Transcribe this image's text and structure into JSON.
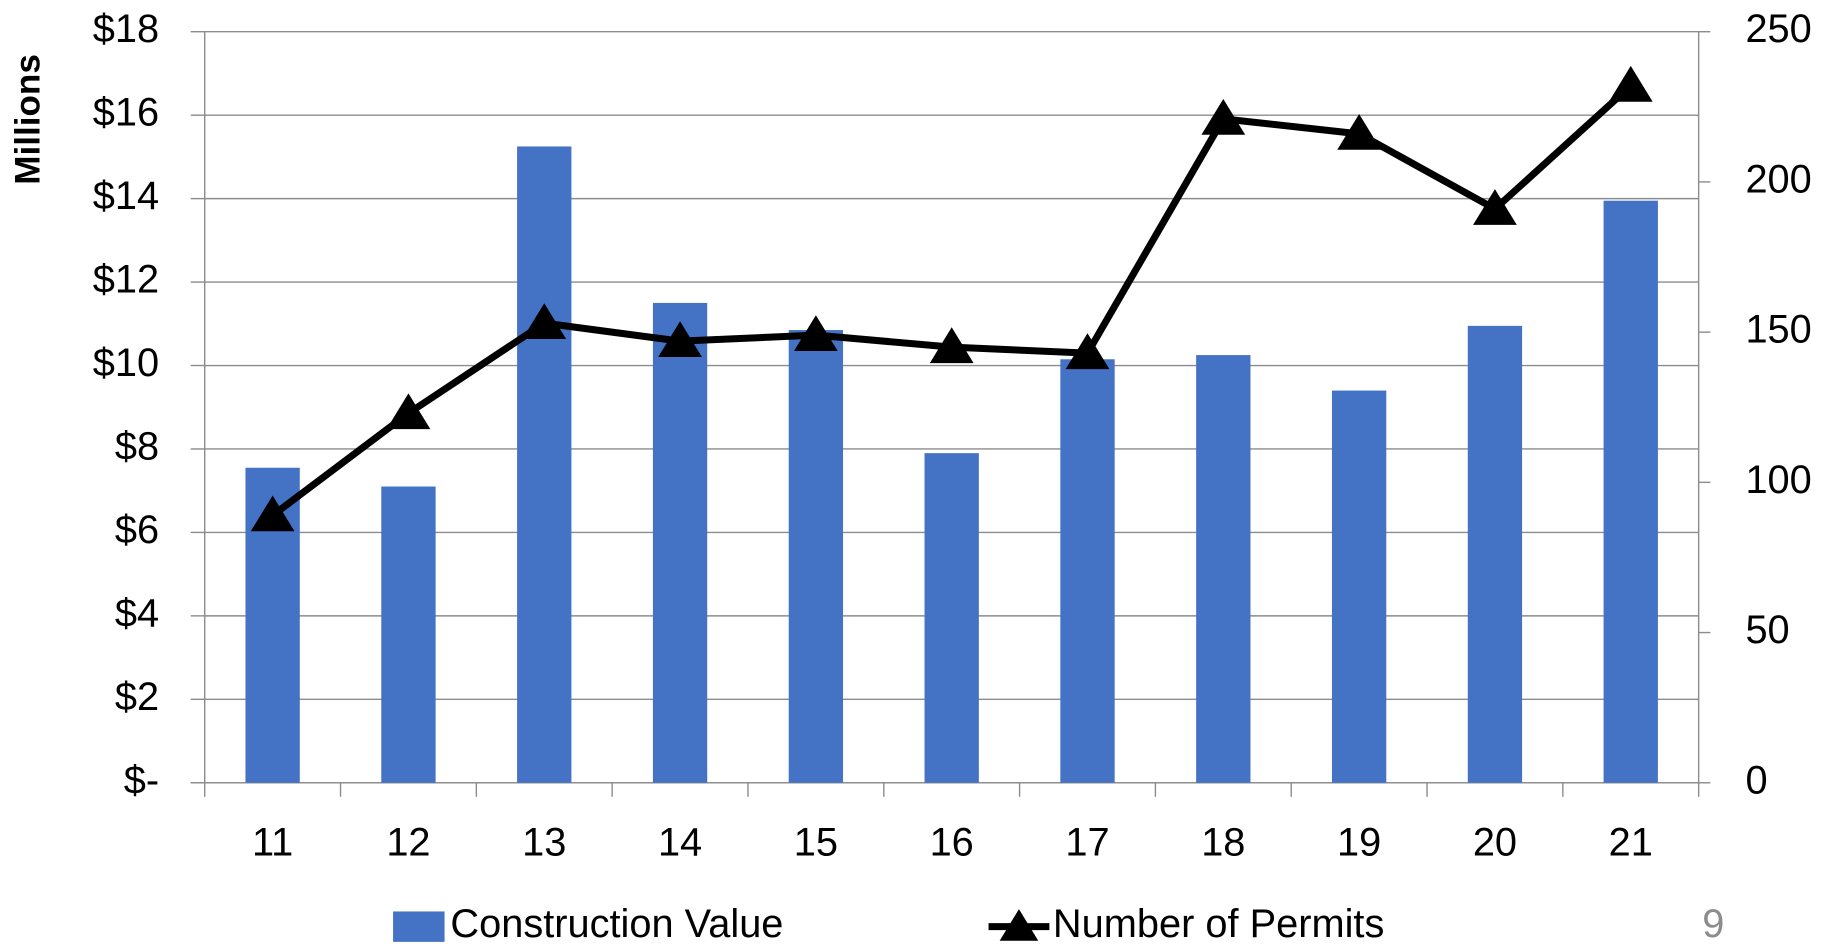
{
  "chart_data": {
    "type": "bar_line",
    "y_axis_label": "Millions",
    "categories": [
      "11",
      "12",
      "13",
      "14",
      "15",
      "16",
      "17",
      "18",
      "19",
      "20",
      "21"
    ],
    "series": [
      {
        "name": "Construction Value",
        "type": "bar",
        "color": "#4472c4",
        "values": [
          7.55,
          7.1,
          15.25,
          11.5,
          10.85,
          7.9,
          10.15,
          10.25,
          9.4,
          10.95,
          13.95
        ]
      },
      {
        "name": "Number of Permits",
        "type": "line",
        "axis": "y2",
        "color": "#000000",
        "marker": "triangle",
        "values": [
          89,
          123,
          153,
          147,
          149,
          145,
          143,
          221,
          216,
          191,
          232
        ]
      }
    ],
    "ylim": [
      0,
      18
    ],
    "yticks": [
      {
        "value": 0,
        "label": "$-"
      },
      {
        "value": 2,
        "label": "$2"
      },
      {
        "value": 4,
        "label": "$4"
      },
      {
        "value": 6,
        "label": "$6"
      },
      {
        "value": 8,
        "label": "$8"
      },
      {
        "value": 10,
        "label": "$10"
      },
      {
        "value": 12,
        "label": "$12"
      },
      {
        "value": 14,
        "label": "$14"
      },
      {
        "value": 16,
        "label": "$16"
      },
      {
        "value": 18,
        "label": "$18"
      }
    ],
    "y2lim": [
      0,
      250
    ],
    "y2ticks": [
      0,
      50,
      100,
      150,
      200,
      250
    ],
    "grid": true,
    "legend": "bottom",
    "annotations": [
      "9"
    ]
  }
}
